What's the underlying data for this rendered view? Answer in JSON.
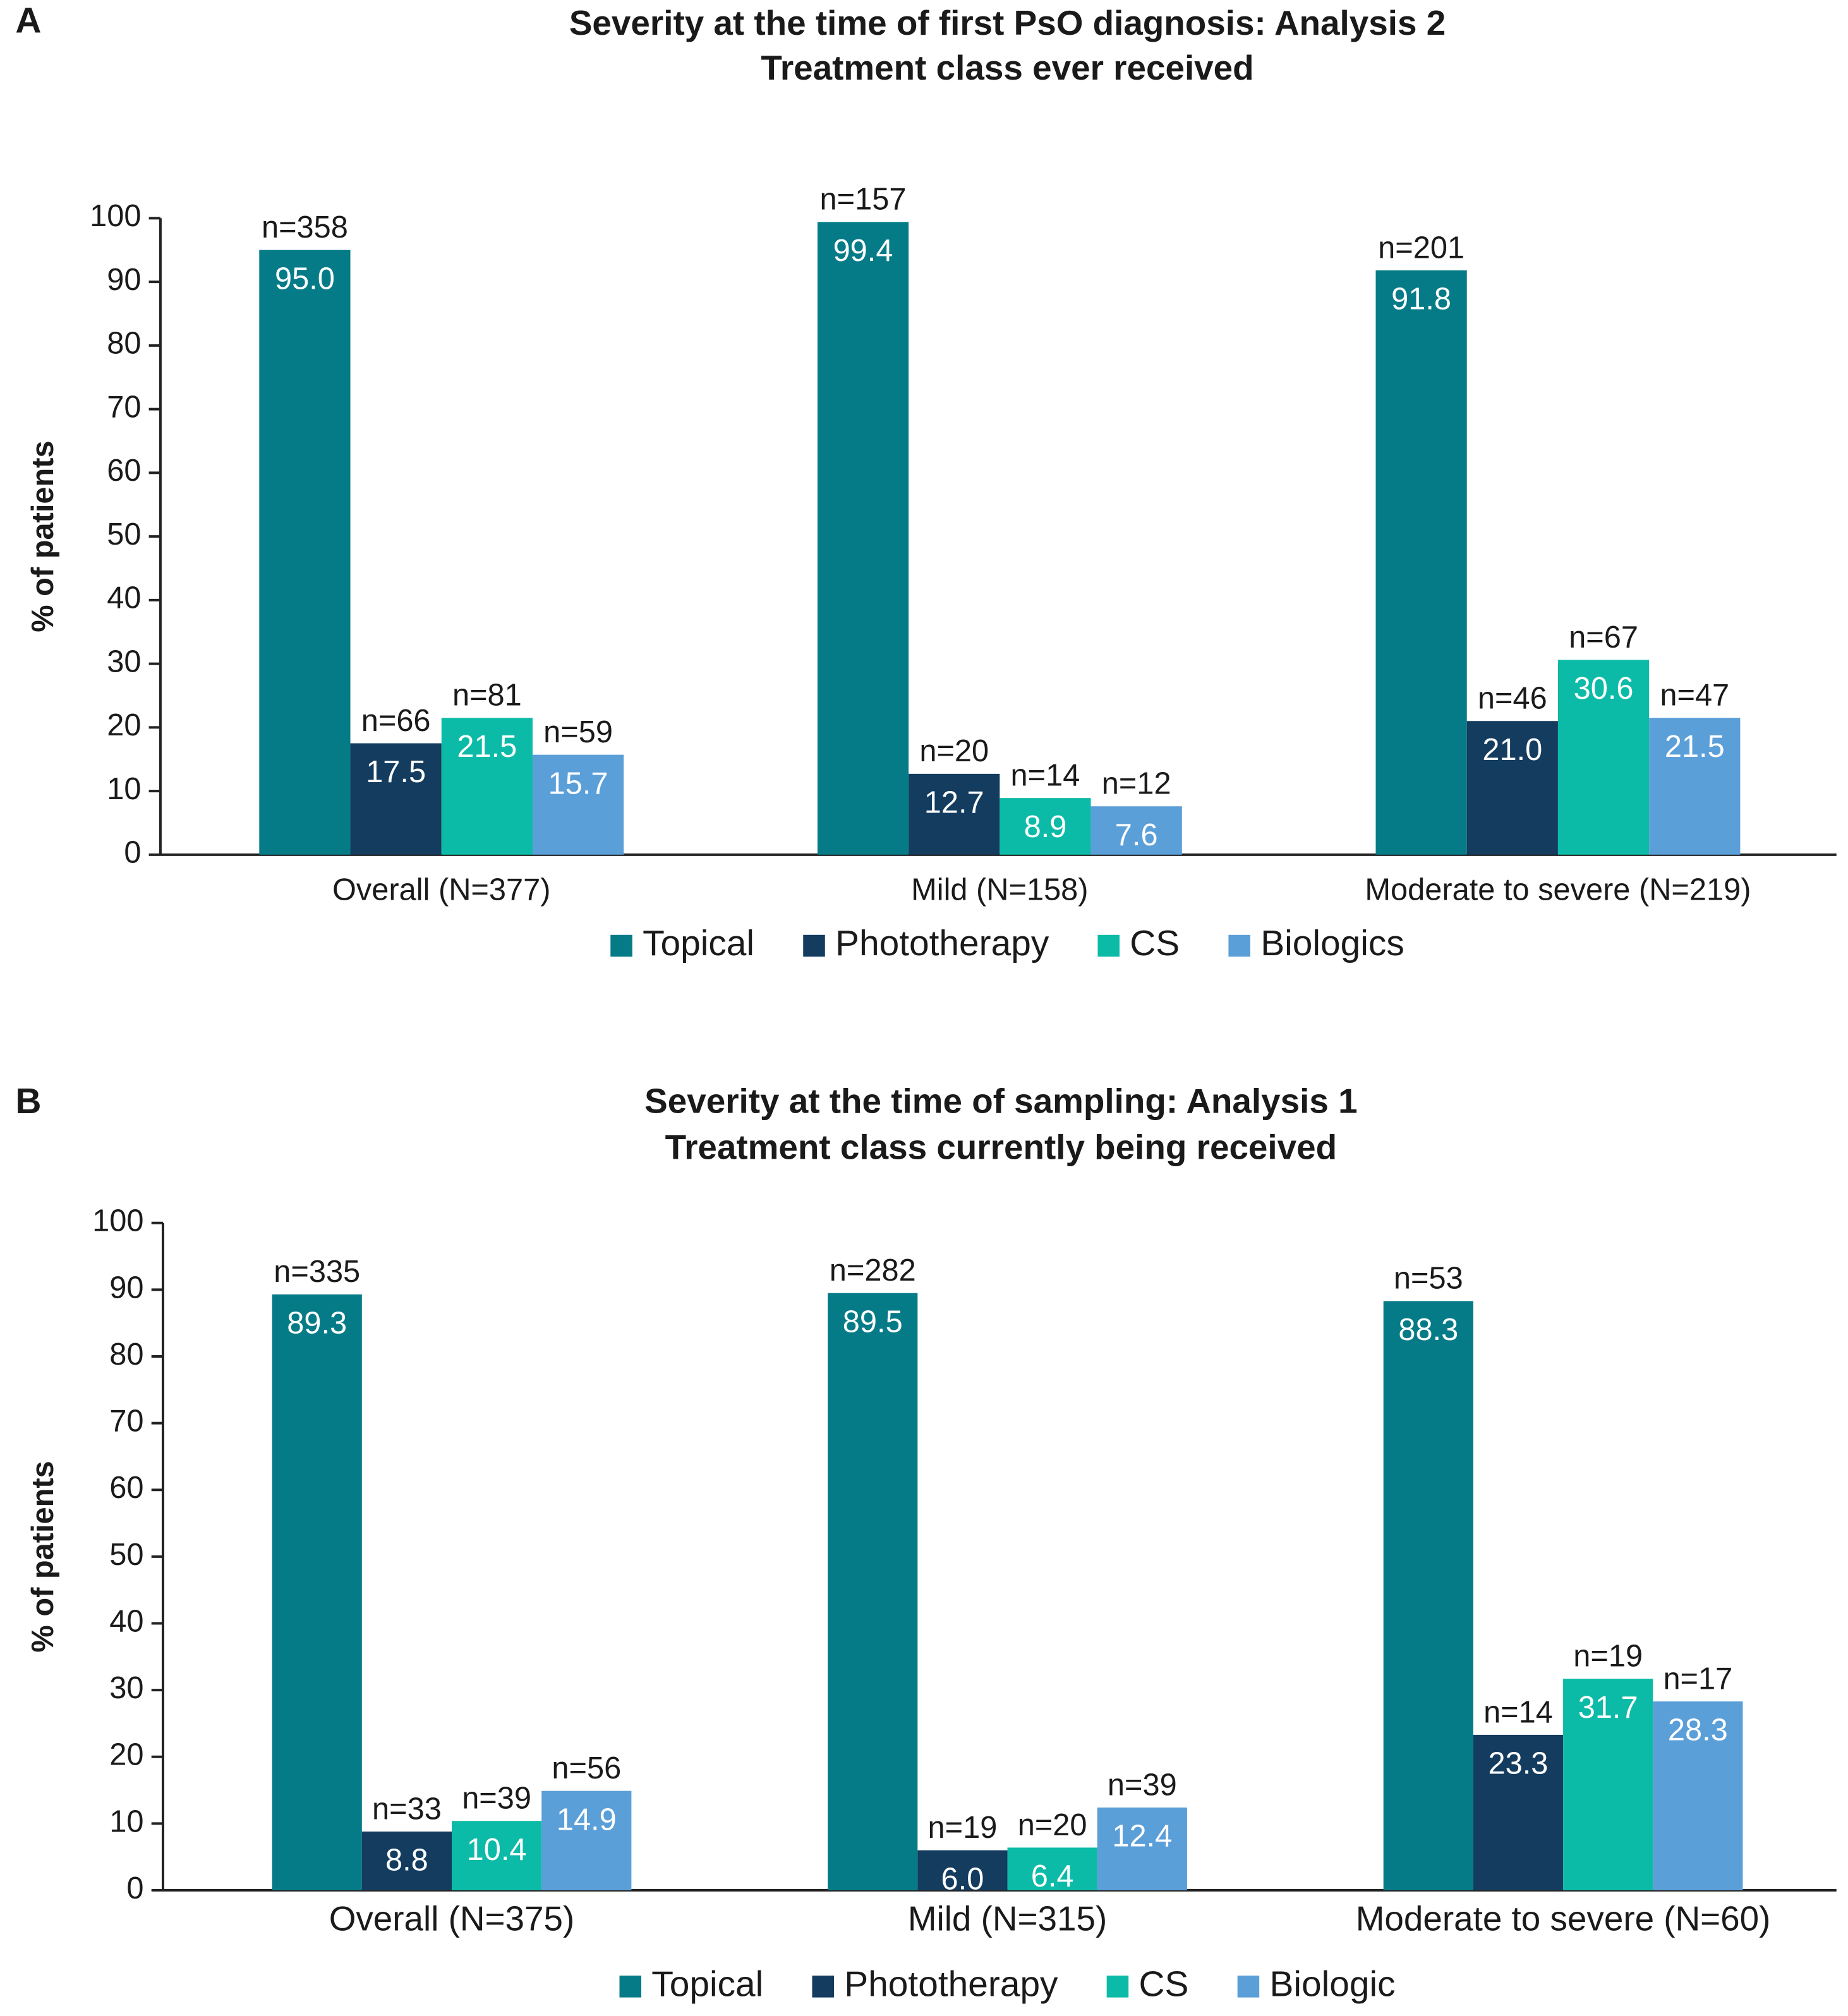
{
  "chart_data": [
    {
      "type": "bar",
      "panel": "A",
      "title": [
        "Severity at the time of first PsO diagnosis: Analysis 2",
        "Treatment class ever received"
      ],
      "y_label": "% of patients",
      "categories": [
        "Overall (N=377)",
        "Mild (N=158)",
        "Moderate to severe (N=219)"
      ],
      "ylim": [
        0,
        100
      ],
      "yticks": [
        0,
        10,
        20,
        30,
        40,
        50,
        60,
        70,
        80,
        90,
        100
      ],
      "series": [
        {
          "name": "Topical",
          "color": "#067b88",
          "values": [
            95.0,
            99.4,
            91.8
          ],
          "value_labels": [
            "95.0",
            "99.4",
            "91.8"
          ],
          "count_labels": [
            "n=358",
            "n=157",
            "n=201"
          ]
        },
        {
          "name": "Phototherapy",
          "color": "#133c5f",
          "values": [
            17.5,
            12.7,
            21.0
          ],
          "value_labels": [
            "17.5",
            "12.7",
            "21.0"
          ],
          "count_labels": [
            "n=66",
            "n=20",
            "n=46"
          ]
        },
        {
          "name": "CS",
          "color": "#0cbba7",
          "values": [
            21.5,
            8.9,
            30.6
          ],
          "value_labels": [
            "21.5",
            "8.9",
            "30.6"
          ],
          "count_labels": [
            "n=81",
            "n=14",
            "n=67"
          ]
        },
        {
          "name": "Biologics",
          "color": "#5b9fd9",
          "values": [
            15.7,
            7.6,
            21.5
          ],
          "value_labels": [
            "15.7",
            "7.6",
            "21.5"
          ],
          "count_labels": [
            "n=59",
            "n=12",
            "n=47"
          ]
        }
      ]
    },
    {
      "type": "bar",
      "panel": "B",
      "title": [
        "Severity at the time of sampling: Analysis 1",
        "Treatment class currently being received"
      ],
      "y_label": "% of patients",
      "categories": [
        "Overall (N=375)",
        "Mild (N=315)",
        "Moderate to severe (N=60)"
      ],
      "ylim": [
        0,
        100
      ],
      "yticks": [
        0,
        10,
        20,
        30,
        40,
        50,
        60,
        70,
        80,
        90,
        100
      ],
      "series": [
        {
          "name": "Topical",
          "color": "#067b88",
          "values": [
            89.3,
            89.5,
            88.3
          ],
          "value_labels": [
            "89.3",
            "89.5",
            "88.3"
          ],
          "count_labels": [
            "n=335",
            "n=282",
            "n=53"
          ]
        },
        {
          "name": "Phototherapy",
          "color": "#133c5f",
          "values": [
            8.8,
            6.0,
            23.3
          ],
          "value_labels": [
            "8.8",
            "6.0",
            "23.3"
          ],
          "count_labels": [
            "n=33",
            "n=19",
            "n=14"
          ]
        },
        {
          "name": "CS",
          "color": "#0cbba7",
          "values": [
            10.4,
            6.4,
            31.7
          ],
          "value_labels": [
            "10.4",
            "6.4",
            "31.7"
          ],
          "count_labels": [
            "n=39",
            "n=20",
            "n=19"
          ]
        },
        {
          "name": "Biologic",
          "color": "#5b9fd9",
          "values": [
            14.9,
            12.4,
            28.3
          ],
          "value_labels": [
            "14.9",
            "12.4",
            "28.3"
          ],
          "count_labels": [
            "n=56",
            "n=39",
            "n=17"
          ]
        }
      ]
    }
  ]
}
